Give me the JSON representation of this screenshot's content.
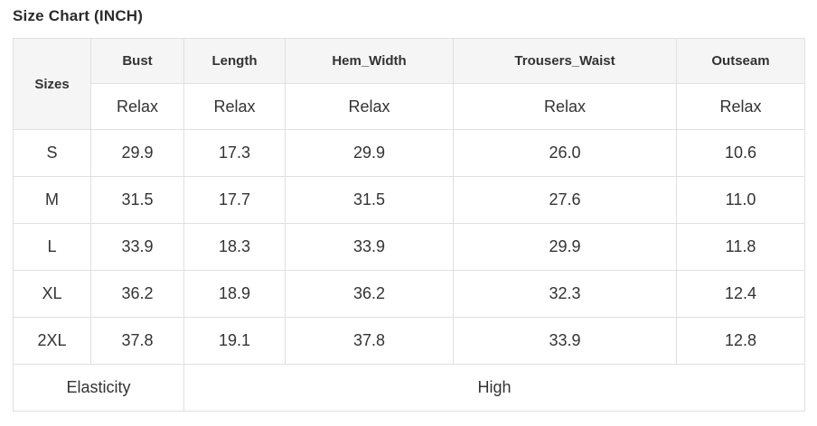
{
  "page": {
    "title": "Size Chart (INCH)"
  },
  "size_chart": {
    "corner_header": "Sizes",
    "measure_headers": [
      "Bust",
      "Length",
      "Hem_Width",
      "Trousers_Waist",
      "Outseam"
    ],
    "fit_row": [
      "Relax",
      "Relax",
      "Relax",
      "Relax",
      "Relax"
    ],
    "rows": [
      {
        "size": "S",
        "values": [
          "29.9",
          "17.3",
          "29.9",
          "26.0",
          "10.6"
        ]
      },
      {
        "size": "M",
        "values": [
          "31.5",
          "17.7",
          "31.5",
          "27.6",
          "11.0"
        ]
      },
      {
        "size": "L",
        "values": [
          "33.9",
          "18.3",
          "33.9",
          "29.9",
          "11.8"
        ]
      },
      {
        "size": "XL",
        "values": [
          "36.2",
          "18.9",
          "36.2",
          "32.3",
          "12.4"
        ]
      },
      {
        "size": "2XL",
        "values": [
          "37.8",
          "19.1",
          "37.8",
          "33.9",
          "12.8"
        ]
      }
    ],
    "footer": {
      "label": "Elasticity",
      "value": "High"
    }
  },
  "colors": {
    "header_bg": "#f5f5f6",
    "border": "#e0e0e0",
    "text": "#333333"
  }
}
